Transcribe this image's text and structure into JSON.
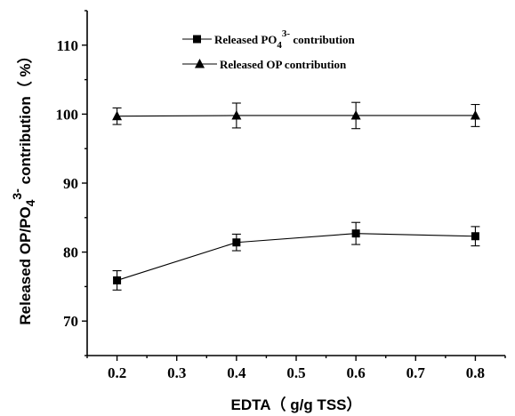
{
  "chart_data": {
    "type": "line",
    "xlabel": "EDTA（ g/g TSS）",
    "ylabel_parts": {
      "before": "Released OP/PO",
      "sub": "4",
      "sup": "3-",
      "after": " contribution（ %）"
    },
    "xlim": [
      0.15,
      0.85
    ],
    "ylim": [
      65,
      115
    ],
    "x_ticks": [
      "0.2",
      "0.3",
      "0.4",
      "0.5",
      "0.6",
      "0.7",
      "0.8"
    ],
    "y_ticks": [
      "70",
      "80",
      "90",
      "100",
      "110"
    ],
    "x": [
      0.2,
      0.4,
      0.6,
      0.8
    ],
    "series": [
      {
        "name_parts": {
          "before": "Released PO",
          "sub": "4",
          "sup": "3-",
          "after": " contribution"
        },
        "marker": "square",
        "values": [
          75.9,
          81.4,
          82.7,
          82.3
        ],
        "errors": [
          1.4,
          1.2,
          1.6,
          1.4
        ]
      },
      {
        "name_parts": {
          "before": "Released OP contribution",
          "sub": "",
          "sup": "",
          "after": ""
        },
        "marker": "triangle",
        "values": [
          99.7,
          99.8,
          99.8,
          99.8
        ],
        "errors": [
          1.2,
          1.8,
          1.9,
          1.6
        ]
      }
    ],
    "legend_position": "top-left",
    "grid": false,
    "line_color": "#000000"
  }
}
